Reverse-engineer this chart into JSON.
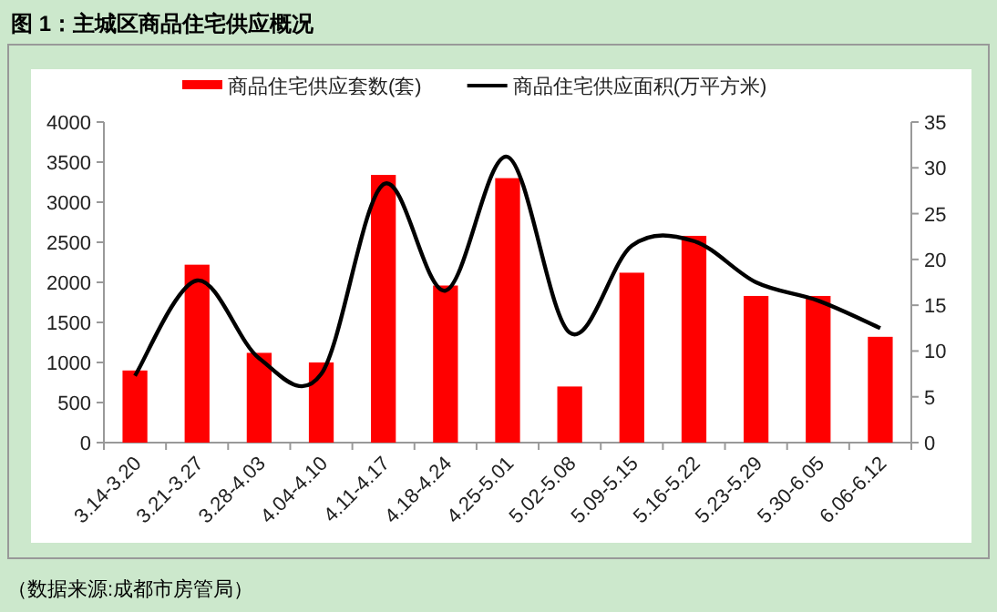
{
  "chart_data": {
    "type": "bar",
    "title": "图 1：主城区商品住宅供应概况",
    "categories": [
      "3.14-3.20",
      "3.21-3.27",
      "3.28-4.03",
      "4.04-4.10",
      "4.11-4.17",
      "4.18-4.24",
      "4.25-5.01",
      "5.02-5.08",
      "5.09-5.15",
      "5.16-5.22",
      "5.23-5.29",
      "5.30-6.05",
      "6.06-6.12"
    ],
    "series": [
      {
        "name": "商品住宅供应套数(套)",
        "color": "#ff0000",
        "values": [
          900,
          2220,
          1120,
          1000,
          3340,
          1960,
          3300,
          700,
          2120,
          2580,
          1830,
          1830,
          1320
        ]
      },
      {
        "name": "商品住宅供应面积(万平方米)",
        "type": "line",
        "axis": "y2",
        "color": "#000000",
        "values": [
          7.3,
          17.7,
          9.2,
          7.5,
          28.2,
          16.6,
          31.2,
          12,
          21.5,
          22,
          17.5,
          15.5,
          12.5
        ]
      }
    ],
    "ylim": [
      0,
      4000
    ],
    "yticks": [
      0,
      500,
      1000,
      1500,
      2000,
      2500,
      3000,
      3500,
      4000
    ],
    "y2lim": [
      0,
      35
    ],
    "y2ticks": [
      0,
      5,
      10,
      15,
      20,
      25,
      30,
      35
    ],
    "legend": "top",
    "grid": false,
    "marker": "none",
    "line_style": "solid",
    "annotations": [
      "（数据来源:成都市房管局）"
    ]
  }
}
